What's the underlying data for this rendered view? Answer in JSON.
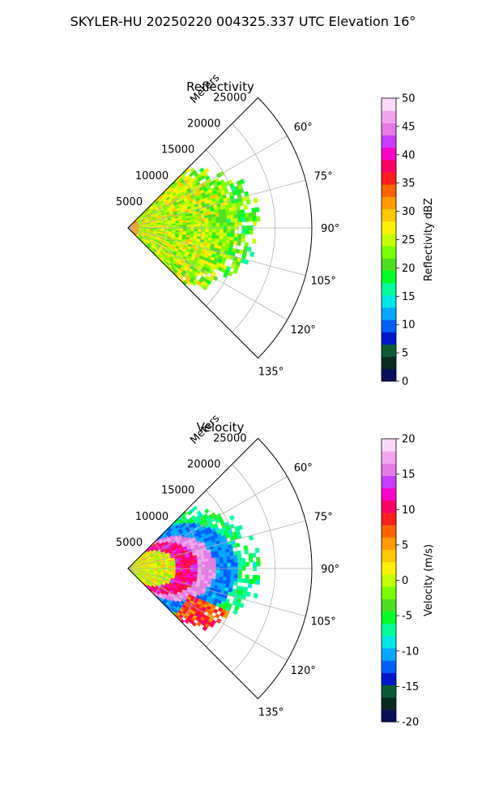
{
  "figure": {
    "suptitle": "SKYLER-HU  20250220  004325.337 UTC Elevation 16°"
  },
  "chart_data": [
    {
      "type": "polar-sector",
      "title": "Reflectivity",
      "radial_label": "Meters",
      "radial_ticks": [
        "5000",
        "10000",
        "15000",
        "20000",
        "25000"
      ],
      "angle_ticks": [
        "60°",
        "75°",
        "90°",
        "105°",
        "120°",
        "135°"
      ],
      "azimuth_range_deg": [
        45,
        135
      ],
      "range_max_m": 25000,
      "grid": true,
      "data_extent": {
        "azimuth_deg": [
          45,
          135
        ],
        "range_m": [
          0,
          18000
        ]
      },
      "colorbar": {
        "label": "Reflectivity dBZ",
        "min": 0,
        "max": 50,
        "ticks": [
          "0",
          "5",
          "10",
          "15",
          "20",
          "25",
          "30",
          "35",
          "40",
          "45",
          "50"
        ],
        "colors": [
          "#0a0f5a",
          "#0a2a20",
          "#0a5a35",
          "#0018c8",
          "#0060ff",
          "#00a8ff",
          "#00e6e6",
          "#00ff9a",
          "#00ff28",
          "#4ee020",
          "#7aff00",
          "#c4ff00",
          "#fff000",
          "#ffc800",
          "#ff9a00",
          "#ff6400",
          "#ff1e1e",
          "#ff0064",
          "#ff00c8",
          "#c83cff",
          "#e67ae6",
          "#f2a6f0",
          "#fcd8fa"
        ]
      }
    },
    {
      "type": "polar-sector",
      "title": "Velocity",
      "radial_label": "Meters",
      "radial_ticks": [
        "5000",
        "10000",
        "15000",
        "20000",
        "25000"
      ],
      "angle_ticks": [
        "60°",
        "75°",
        "90°",
        "105°",
        "120°",
        "135°"
      ],
      "azimuth_range_deg": [
        45,
        135
      ],
      "range_max_m": 25000,
      "grid": true,
      "data_extent": {
        "azimuth_deg": [
          45,
          135
        ],
        "range_m": [
          0,
          18000
        ]
      },
      "colorbar": {
        "label": "Velocity (m/s)",
        "min": -20,
        "max": 20,
        "ticks": [
          "-20",
          "-15",
          "-10",
          "-5",
          "0",
          "5",
          "10",
          "15",
          "20"
        ],
        "colors": [
          "#0a0f5a",
          "#0a2a20",
          "#0a5a35",
          "#0018c8",
          "#0060ff",
          "#00a8ff",
          "#00e6e6",
          "#00ff9a",
          "#00ff28",
          "#4ee020",
          "#7aff00",
          "#c4ff00",
          "#fff000",
          "#ffc800",
          "#ff9a00",
          "#ff6400",
          "#ff1e1e",
          "#ff0064",
          "#ff00c8",
          "#c83cff",
          "#e67ae6",
          "#f2a6f0",
          "#fcd8fa"
        ]
      }
    }
  ]
}
